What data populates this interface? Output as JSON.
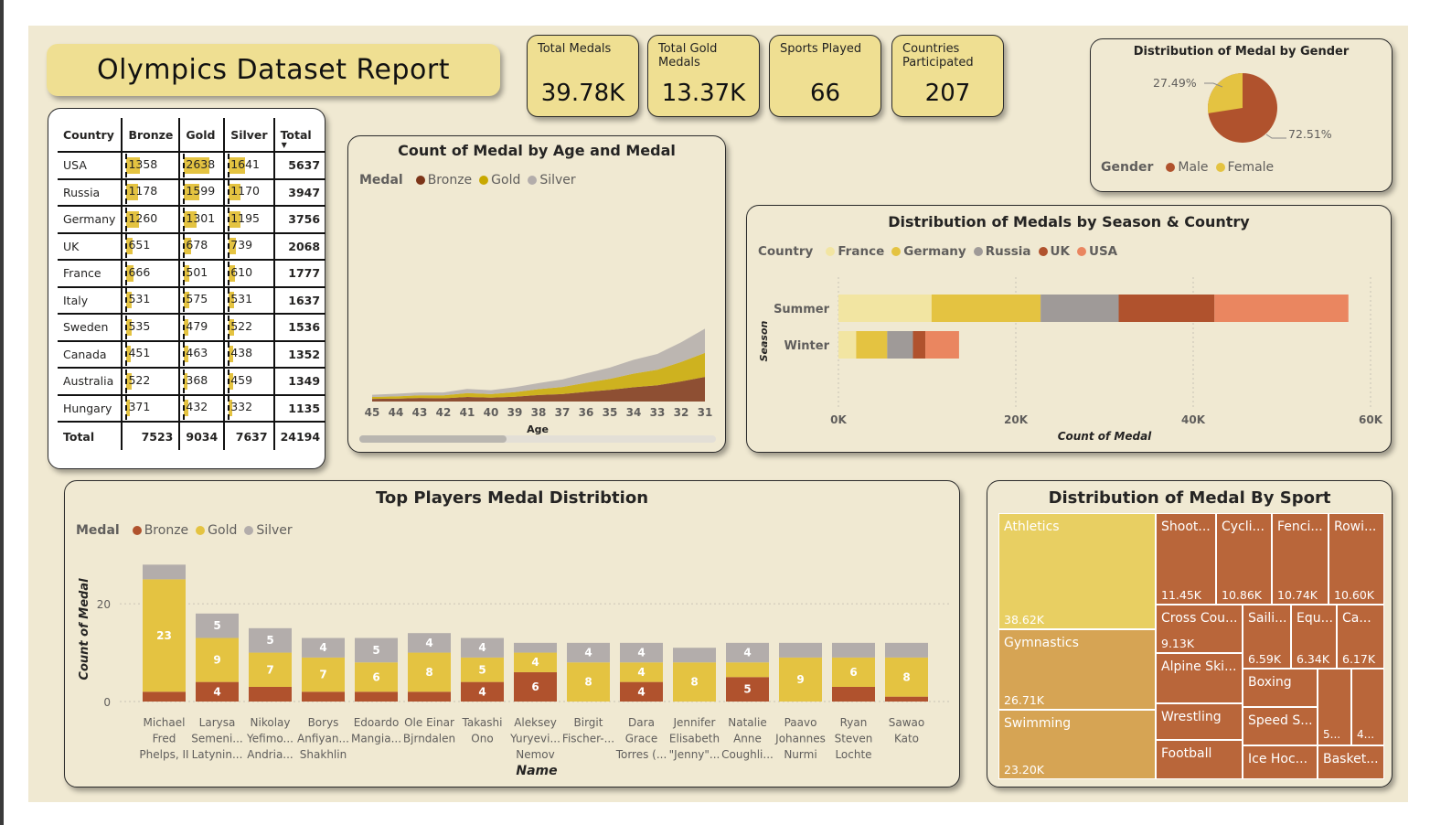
{
  "report_title": "Olympics Dataset Report",
  "kpis": [
    {
      "label": "Total Medals",
      "value": "39.78K"
    },
    {
      "label": "Total Gold Medals",
      "value": "13.37K"
    },
    {
      "label": "Sports Played",
      "value": "66"
    },
    {
      "label": "Countries Participated",
      "value": "207"
    }
  ],
  "colors": {
    "bronze": "#b0522d",
    "gold": "#e4c341",
    "silver": "#b3adab",
    "dark_bronze": "#7c3418",
    "france": "#f2e5a2",
    "germany": "#e4c341",
    "russia": "#9f9a98",
    "uk": "#b0522d",
    "usa": "#ea8660"
  },
  "medal_table": {
    "headers": [
      "Country",
      "Bronze",
      "Gold",
      "Silver",
      "Total"
    ],
    "rows": [
      {
        "country": "USA",
        "bronze": 1358,
        "gold": 2638,
        "silver": 1641,
        "total": 5637
      },
      {
        "country": "Russia",
        "bronze": 1178,
        "gold": 1599,
        "silver": 1170,
        "total": 3947
      },
      {
        "country": "Germany",
        "bronze": 1260,
        "gold": 1301,
        "silver": 1195,
        "total": 3756
      },
      {
        "country": "UK",
        "bronze": 651,
        "gold": 678,
        "silver": 739,
        "total": 2068
      },
      {
        "country": "France",
        "bronze": 666,
        "gold": 501,
        "silver": 610,
        "total": 1777
      },
      {
        "country": "Italy",
        "bronze": 531,
        "gold": 575,
        "silver": 531,
        "total": 1637
      },
      {
        "country": "Sweden",
        "bronze": 535,
        "gold": 479,
        "silver": 522,
        "total": 1536
      },
      {
        "country": "Canada",
        "bronze": 451,
        "gold": 463,
        "silver": 438,
        "total": 1352
      },
      {
        "country": "Australia",
        "bronze": 522,
        "gold": 368,
        "silver": 459,
        "total": 1349
      },
      {
        "country": "Hungary",
        "bronze": 371,
        "gold": 432,
        "silver": 332,
        "total": 1135
      }
    ],
    "totals": {
      "label": "Total",
      "bronze": 7523,
      "gold": 9034,
      "silver": 7637,
      "total": 24194
    }
  },
  "chart_data": [
    {
      "type": "area",
      "title": "Count of Medal by Age and Medal",
      "xlabel": "Age",
      "ylabel": "",
      "legend_title": "Medal",
      "x": [
        45,
        44,
        43,
        42,
        41,
        40,
        39,
        38,
        37,
        36,
        35,
        34,
        33,
        32,
        31
      ],
      "series": [
        {
          "name": "Bronze",
          "values": [
            40,
            45,
            55,
            50,
            70,
            60,
            75,
            100,
            115,
            150,
            180,
            220,
            250,
            310,
            380
          ]
        },
        {
          "name": "Gold",
          "values": [
            30,
            35,
            40,
            45,
            60,
            55,
            70,
            90,
            110,
            140,
            170,
            210,
            240,
            300,
            370
          ]
        },
        {
          "name": "Silver",
          "values": [
            35,
            40,
            45,
            45,
            65,
            60,
            75,
            95,
            115,
            145,
            175,
            215,
            245,
            305,
            375
          ]
        }
      ]
    },
    {
      "type": "bar",
      "title": "Distribution of Medals by Season & Country",
      "orientation": "horizontal",
      "stacked": true,
      "legend_title": "Country",
      "categories": [
        "Summer",
        "Winter"
      ],
      "series": [
        {
          "name": "France",
          "values": [
            10500,
            2000
          ]
        },
        {
          "name": "Germany",
          "values": [
            12300,
            3500
          ]
        },
        {
          "name": "Russia",
          "values": [
            8800,
            2900
          ]
        },
        {
          "name": "UK",
          "values": [
            10800,
            1400
          ]
        },
        {
          "name": "USA",
          "values": [
            15100,
            3800
          ]
        }
      ],
      "xlabel": "Count of Medal",
      "ylabel": "Season",
      "xlim": [
        0,
        60000
      ],
      "x_ticks": [
        "0K",
        "20K",
        "40K",
        "60K"
      ]
    },
    {
      "type": "pie",
      "title": "Distribution of Medal by Gender",
      "legend_title": "Gender",
      "categories": [
        "Male",
        "Female"
      ],
      "values": [
        72.51,
        27.49
      ],
      "labels": [
        "72.51%",
        "27.49%"
      ]
    },
    {
      "type": "bar",
      "title": "Top Players Medal Distribtion",
      "stacked": true,
      "legend_title": "Medal",
      "categories": [
        [
          "Michael",
          "Fred",
          "Phelps, II"
        ],
        [
          "Larysa",
          "Semeni...",
          "Latynin..."
        ],
        [
          "Nikolay",
          "Yefimo...",
          "Andria..."
        ],
        [
          "Borys",
          "Anfiyan...",
          "Shakhlin"
        ],
        [
          "Edoardo",
          "Mangia..."
        ],
        [
          "Ole Einar",
          "Bjrndalen"
        ],
        [
          "Takashi",
          "Ono"
        ],
        [
          "Aleksey",
          "Yuryevi...",
          "Nemov"
        ],
        [
          "Birgit",
          "Fischer-..."
        ],
        [
          "Dara",
          "Grace",
          "Torres (..."
        ],
        [
          "Jennifer",
          "Elisabeth",
          "\"Jenny\"..."
        ],
        [
          "Natalie",
          "Anne",
          "Coughli..."
        ],
        [
          "Paavo",
          "Johannes",
          "Nurmi"
        ],
        [
          "Ryan",
          "Steven",
          "Lochte"
        ],
        [
          "Sawao",
          "Kato"
        ]
      ],
      "series": [
        {
          "name": "Bronze",
          "values": [
            2,
            4,
            3,
            2,
            2,
            2,
            4,
            6,
            0,
            4,
            0,
            5,
            0,
            3,
            1
          ],
          "labels": [
            "",
            "4",
            "",
            "",
            "",
            "",
            "4",
            "6",
            "",
            "4",
            "",
            "5",
            "",
            "",
            ""
          ]
        },
        {
          "name": "Gold",
          "values": [
            23,
            9,
            7,
            7,
            6,
            8,
            5,
            4,
            8,
            4,
            8,
            3,
            9,
            6,
            8
          ],
          "labels": [
            "23",
            "9",
            "7",
            "7",
            "6",
            "8",
            "5",
            "4",
            "8",
            "4",
            "8",
            "",
            "9",
            "6",
            "8"
          ]
        },
        {
          "name": "Silver",
          "values": [
            3,
            5,
            5,
            4,
            5,
            4,
            4,
            2,
            4,
            4,
            3,
            4,
            3,
            3,
            3
          ],
          "labels": [
            "",
            "5",
            "5",
            "4",
            "5",
            "4",
            "4",
            "",
            "4",
            "4",
            "",
            "4",
            "",
            "",
            ""
          ]
        }
      ],
      "xlabel": "Name",
      "ylabel": "Count of Medal",
      "ylim": [
        0,
        29
      ],
      "y_ticks": [
        "0",
        "20"
      ]
    },
    {
      "type": "treemap",
      "title": "Distribution of Medal By Sport",
      "items": [
        {
          "name": "Athletics",
          "value": "38.62K"
        },
        {
          "name": "Gymnastics",
          "value": "26.71K"
        },
        {
          "name": "Swimming",
          "value": "23.20K"
        },
        {
          "name": "Shoot...",
          "value": "11.45K"
        },
        {
          "name": "Cycli...",
          "value": "10.86K"
        },
        {
          "name": "Fenci...",
          "value": "10.74K"
        },
        {
          "name": "Rowi...",
          "value": "10.60K"
        },
        {
          "name": "Cross Cou...",
          "value": "9.13K"
        },
        {
          "name": "Saili...",
          "value": "6.59K"
        },
        {
          "name": "Equ...",
          "value": "6.34K"
        },
        {
          "name": "Ca...",
          "value": "6.17K"
        },
        {
          "name": "Alpine Ski...",
          "value": ""
        },
        {
          "name": "Boxing",
          "value": ""
        },
        {
          "name": "Wrestling",
          "value": ""
        },
        {
          "name": "Speed S...",
          "value": ""
        },
        {
          "name": "5...",
          "value": ""
        },
        {
          "name": "4...",
          "value": ""
        },
        {
          "name": "Football",
          "value": ""
        },
        {
          "name": "Ice Hoc...",
          "value": ""
        },
        {
          "name": "Basket...",
          "value": ""
        }
      ]
    }
  ]
}
